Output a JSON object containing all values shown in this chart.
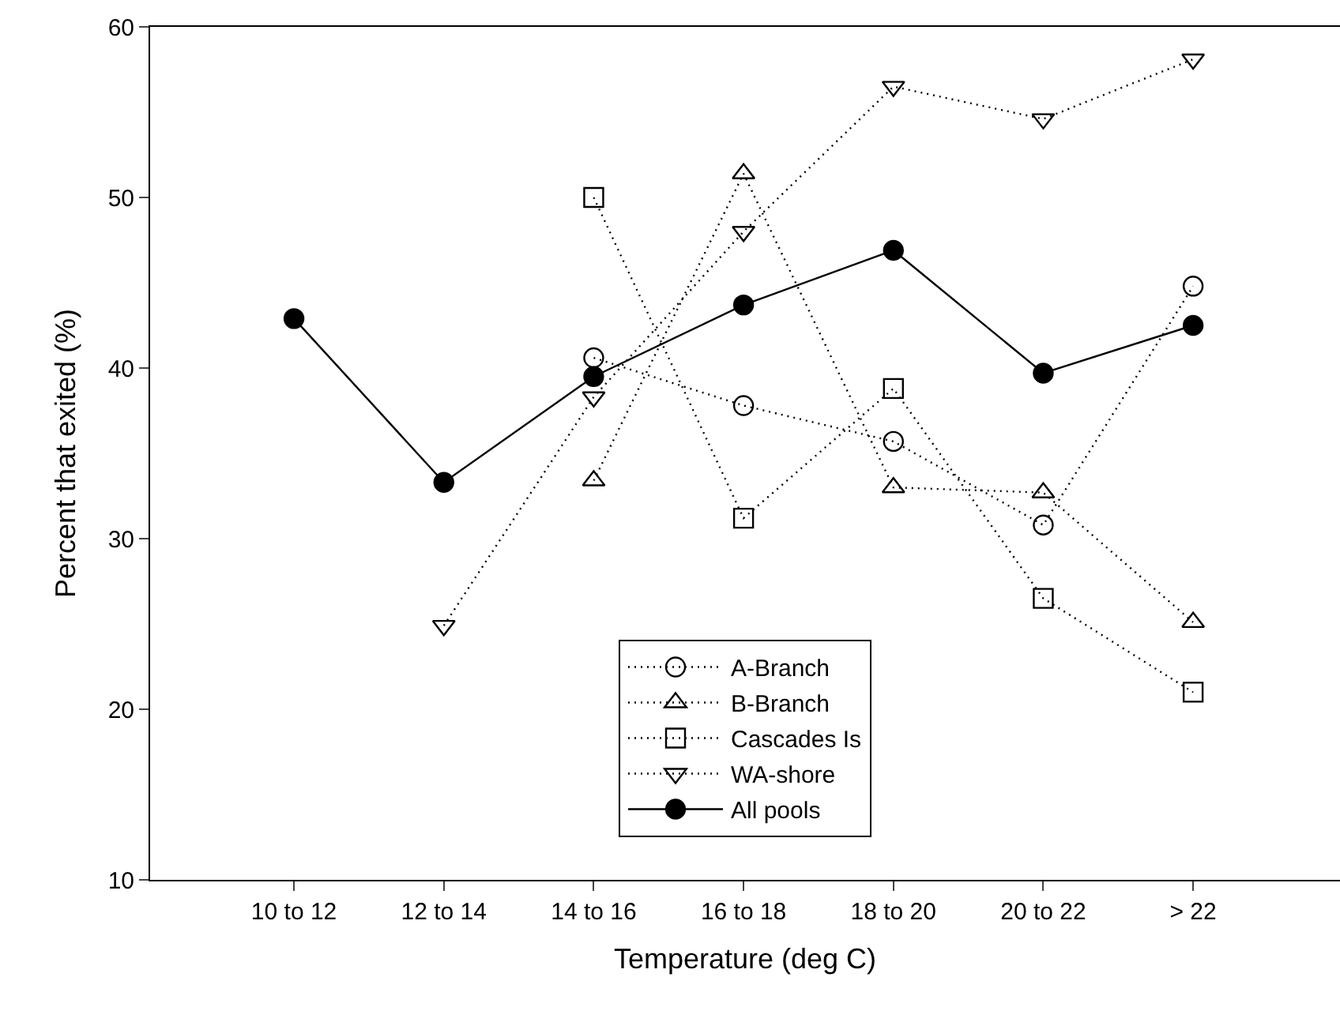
{
  "chart_data": {
    "type": "line",
    "xlabel": "Temperature (deg C)",
    "ylabel": "Percent that exited (%)",
    "categories": [
      "10 to 12",
      "12 to 14",
      "14 to 16",
      "16 to 18",
      "18 to 20",
      "20 to 22",
      "> 22"
    ],
    "ylim": [
      10,
      60
    ],
    "yticks": [
      10,
      20,
      30,
      40,
      50,
      60
    ],
    "legend": "bottom",
    "series": [
      {
        "name": "A-Branch",
        "color": "#000000",
        "marker": "circle",
        "line_style": "dotted",
        "values": [
          null,
          null,
          40.6,
          37.8,
          35.7,
          30.8,
          44.8
        ]
      },
      {
        "name": "B-Branch",
        "color": "#000000",
        "marker": "triangle",
        "line_style": "dotted",
        "values": [
          null,
          null,
          33.4,
          51.4,
          33.0,
          32.7,
          25.1
        ]
      },
      {
        "name": "Cascades Is",
        "color": "#000000",
        "marker": "square",
        "line_style": "dotted",
        "values": [
          null,
          null,
          50.0,
          31.2,
          38.8,
          26.5,
          21.0
        ]
      },
      {
        "name": "WA-shore",
        "color": "#000000",
        "marker": "triangle-down",
        "line_style": "dotted",
        "values": [
          null,
          24.9,
          38.3,
          48.0,
          56.5,
          54.6,
          58.1
        ]
      },
      {
        "name": "All pools",
        "color": "#000000",
        "marker": "circle-filled",
        "line_style": "solid",
        "values": [
          42.9,
          33.3,
          39.5,
          43.7,
          46.9,
          39.7,
          42.5
        ]
      }
    ]
  }
}
